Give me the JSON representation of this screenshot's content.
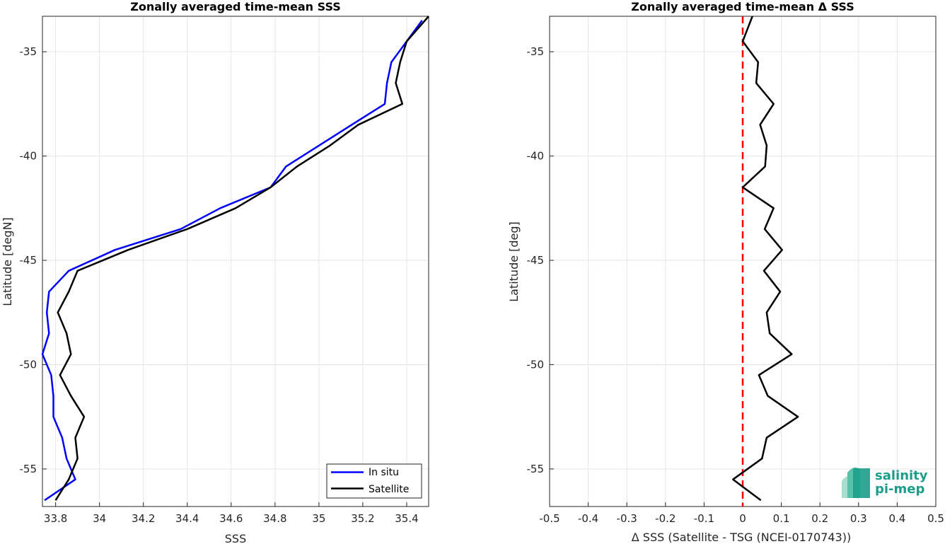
{
  "chart_data": [
    {
      "type": "line",
      "title": "Zonally averaged time-mean SSS",
      "xlabel": "SSS",
      "ylabel": "Latitude [degN]",
      "xlim": [
        33.74,
        35.5
      ],
      "ylim": [
        -56.8,
        -33.3
      ],
      "xticks": [
        33.8,
        34,
        34.2,
        34.4,
        34.6,
        34.8,
        35,
        35.2,
        35.4
      ],
      "xticklabels": [
        "33.8",
        "34",
        "34.2",
        "34.4",
        "34.6",
        "34.8",
        "35",
        "35.2",
        "35.4"
      ],
      "yticks": [
        -35,
        -40,
        -45,
        -50,
        -55
      ],
      "yticklabels": [
        "-35",
        "-40",
        "-45",
        "-50",
        "-55"
      ],
      "grid": true,
      "legend_position": "bottom-right",
      "series": [
        {
          "name": "In situ",
          "color": "#0000ff",
          "points": [
            [
              35.47,
              -33.5
            ],
            [
              35.4,
              -34.5
            ],
            [
              35.33,
              -35.5
            ],
            [
              35.31,
              -36.5
            ],
            [
              35.3,
              -37.5
            ],
            [
              35.15,
              -38.5
            ],
            [
              35.0,
              -39.5
            ],
            [
              34.85,
              -40.5
            ],
            [
              34.78,
              -41.5
            ],
            [
              34.55,
              -42.5
            ],
            [
              34.37,
              -43.5
            ],
            [
              34.07,
              -44.5
            ],
            [
              33.86,
              -45.5
            ],
            [
              33.77,
              -46.5
            ],
            [
              33.76,
              -47.5
            ],
            [
              33.77,
              -48.5
            ],
            [
              33.74,
              -49.5
            ],
            [
              33.78,
              -50.5
            ],
            [
              33.79,
              -51.5
            ],
            [
              33.79,
              -52.5
            ],
            [
              33.83,
              -53.5
            ],
            [
              33.85,
              -54.5
            ],
            [
              33.89,
              -55.5
            ],
            [
              33.75,
              -56.5
            ]
          ]
        },
        {
          "name": "Satellite",
          "color": "#000000",
          "points": [
            [
              35.5,
              -33.3
            ],
            [
              35.4,
              -34.5
            ],
            [
              35.37,
              -35.5
            ],
            [
              35.35,
              -36.5
            ],
            [
              35.38,
              -37.5
            ],
            [
              35.18,
              -38.5
            ],
            [
              35.05,
              -39.5
            ],
            [
              34.9,
              -40.5
            ],
            [
              34.78,
              -41.5
            ],
            [
              34.62,
              -42.5
            ],
            [
              34.4,
              -43.5
            ],
            [
              34.13,
              -44.5
            ],
            [
              33.9,
              -45.5
            ],
            [
              33.86,
              -46.5
            ],
            [
              33.81,
              -47.5
            ],
            [
              33.85,
              -48.5
            ],
            [
              33.87,
              -49.5
            ],
            [
              33.82,
              -50.5
            ],
            [
              33.87,
              -51.5
            ],
            [
              33.93,
              -52.5
            ],
            [
              33.89,
              -53.5
            ],
            [
              33.9,
              -54.5
            ],
            [
              33.86,
              -55.5
            ],
            [
              33.8,
              -56.5
            ]
          ]
        }
      ]
    },
    {
      "type": "line",
      "title": "Zonally averaged time-mean Δ SSS",
      "xlabel": "Δ SSS (Satellite - TSG (NCEI-0170743))",
      "ylabel": "Latitude [deg]",
      "xlim": [
        -0.5,
        0.5
      ],
      "ylim": [
        -56.8,
        -33.3
      ],
      "xticks": [
        -0.5,
        -0.4,
        -0.3,
        -0.2,
        -0.1,
        0,
        0.1,
        0.2,
        0.3,
        0.4,
        0.5
      ],
      "xticklabels": [
        "-0.5",
        "-0.4",
        "-0.3",
        "-0.2",
        "-0.1",
        "0",
        "0.1",
        "0.2",
        "0.3",
        "0.4",
        "0.5"
      ],
      "yticks": [
        -35,
        -40,
        -45,
        -50,
        -55
      ],
      "yticklabels": [
        "-35",
        "-40",
        "-45",
        "-50",
        "-55"
      ],
      "grid": true,
      "reference_line": {
        "x": 0,
        "color": "#ff0000",
        "style": "dashed"
      },
      "series": [
        {
          "color": "#000000",
          "points": [
            [
              0.025,
              -33.3
            ],
            [
              0.0,
              -34.5
            ],
            [
              0.04,
              -35.5
            ],
            [
              0.035,
              -36.5
            ],
            [
              0.08,
              -37.5
            ],
            [
              0.045,
              -38.5
            ],
            [
              0.062,
              -39.5
            ],
            [
              0.058,
              -40.5
            ],
            [
              0.0,
              -41.5
            ],
            [
              0.08,
              -42.5
            ],
            [
              0.057,
              -43.5
            ],
            [
              0.102,
              -44.5
            ],
            [
              0.055,
              -45.5
            ],
            [
              0.097,
              -46.5
            ],
            [
              0.062,
              -47.5
            ],
            [
              0.07,
              -48.5
            ],
            [
              0.127,
              -49.5
            ],
            [
              0.042,
              -50.5
            ],
            [
              0.065,
              -51.5
            ],
            [
              0.143,
              -52.5
            ],
            [
              0.062,
              -53.5
            ],
            [
              0.05,
              -54.5
            ],
            [
              -0.025,
              -55.5
            ],
            [
              0.047,
              -56.5
            ]
          ]
        }
      ]
    }
  ],
  "logo": {
    "line1": "salinity",
    "line2": "pi-mep",
    "color": "#1a9e8a"
  }
}
